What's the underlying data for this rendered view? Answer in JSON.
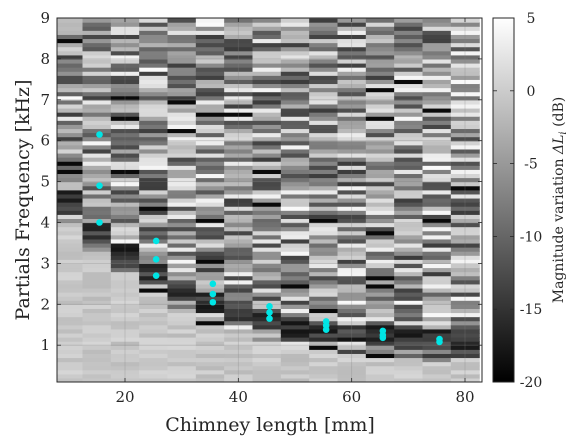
{
  "chart_data": {
    "type": "heatmap",
    "title": "",
    "xlabel": "Chimney length [mm]",
    "ylabel": "Partials Frequency [kHz]",
    "colorbar_label": "Magnitude variation ΔL_i (dB)",
    "colorbar_label_text": "Magnitude variation",
    "colorbar_label_symbol": "ΔL",
    "colorbar_label_sub": "i",
    "colorbar_label_unit": "(dB)",
    "colormap": "gray",
    "xlim": [
      8,
      83
    ],
    "ylim": [
      0.1,
      9
    ],
    "clim": [
      -20,
      5
    ],
    "xticks": [
      20,
      40,
      60,
      80
    ],
    "yticks": [
      1,
      2,
      3,
      4,
      5,
      6,
      7,
      8,
      9
    ],
    "cbar_ticks": [
      5,
      0,
      -5,
      -10,
      -15,
      -20
    ],
    "grid": true,
    "columns_x": [
      10,
      15,
      20,
      25,
      30,
      35,
      40,
      45,
      50,
      55,
      60,
      65,
      70,
      75,
      80
    ],
    "ridge_frequencies_khz": [
      4.5,
      3.8,
      3.3,
      2.8,
      2.35,
      2.05,
      1.85,
      1.6,
      1.45,
      1.35,
      1.3,
      1.25,
      1.2,
      1.15,
      1.1
    ],
    "marker_color": "#00e5e5",
    "markers": [
      {
        "x": 15.5,
        "y": 6.15
      },
      {
        "x": 15.5,
        "y": 4.9
      },
      {
        "x": 15.5,
        "y": 4.0
      },
      {
        "x": 25.5,
        "y": 3.55
      },
      {
        "x": 25.5,
        "y": 3.1
      },
      {
        "x": 25.5,
        "y": 2.7
      },
      {
        "x": 35.5,
        "y": 2.5
      },
      {
        "x": 35.5,
        "y": 2.25
      },
      {
        "x": 35.5,
        "y": 2.05
      },
      {
        "x": 45.5,
        "y": 1.95
      },
      {
        "x": 45.5,
        "y": 1.8
      },
      {
        "x": 45.5,
        "y": 1.65
      },
      {
        "x": 55.5,
        "y": 1.58
      },
      {
        "x": 55.5,
        "y": 1.48
      },
      {
        "x": 55.5,
        "y": 1.38
      },
      {
        "x": 65.5,
        "y": 1.35
      },
      {
        "x": 65.5,
        "y": 1.25
      },
      {
        "x": 65.5,
        "y": 1.18
      },
      {
        "x": 75.5,
        "y": 1.15
      },
      {
        "x": 75.5,
        "y": 1.08
      }
    ]
  }
}
